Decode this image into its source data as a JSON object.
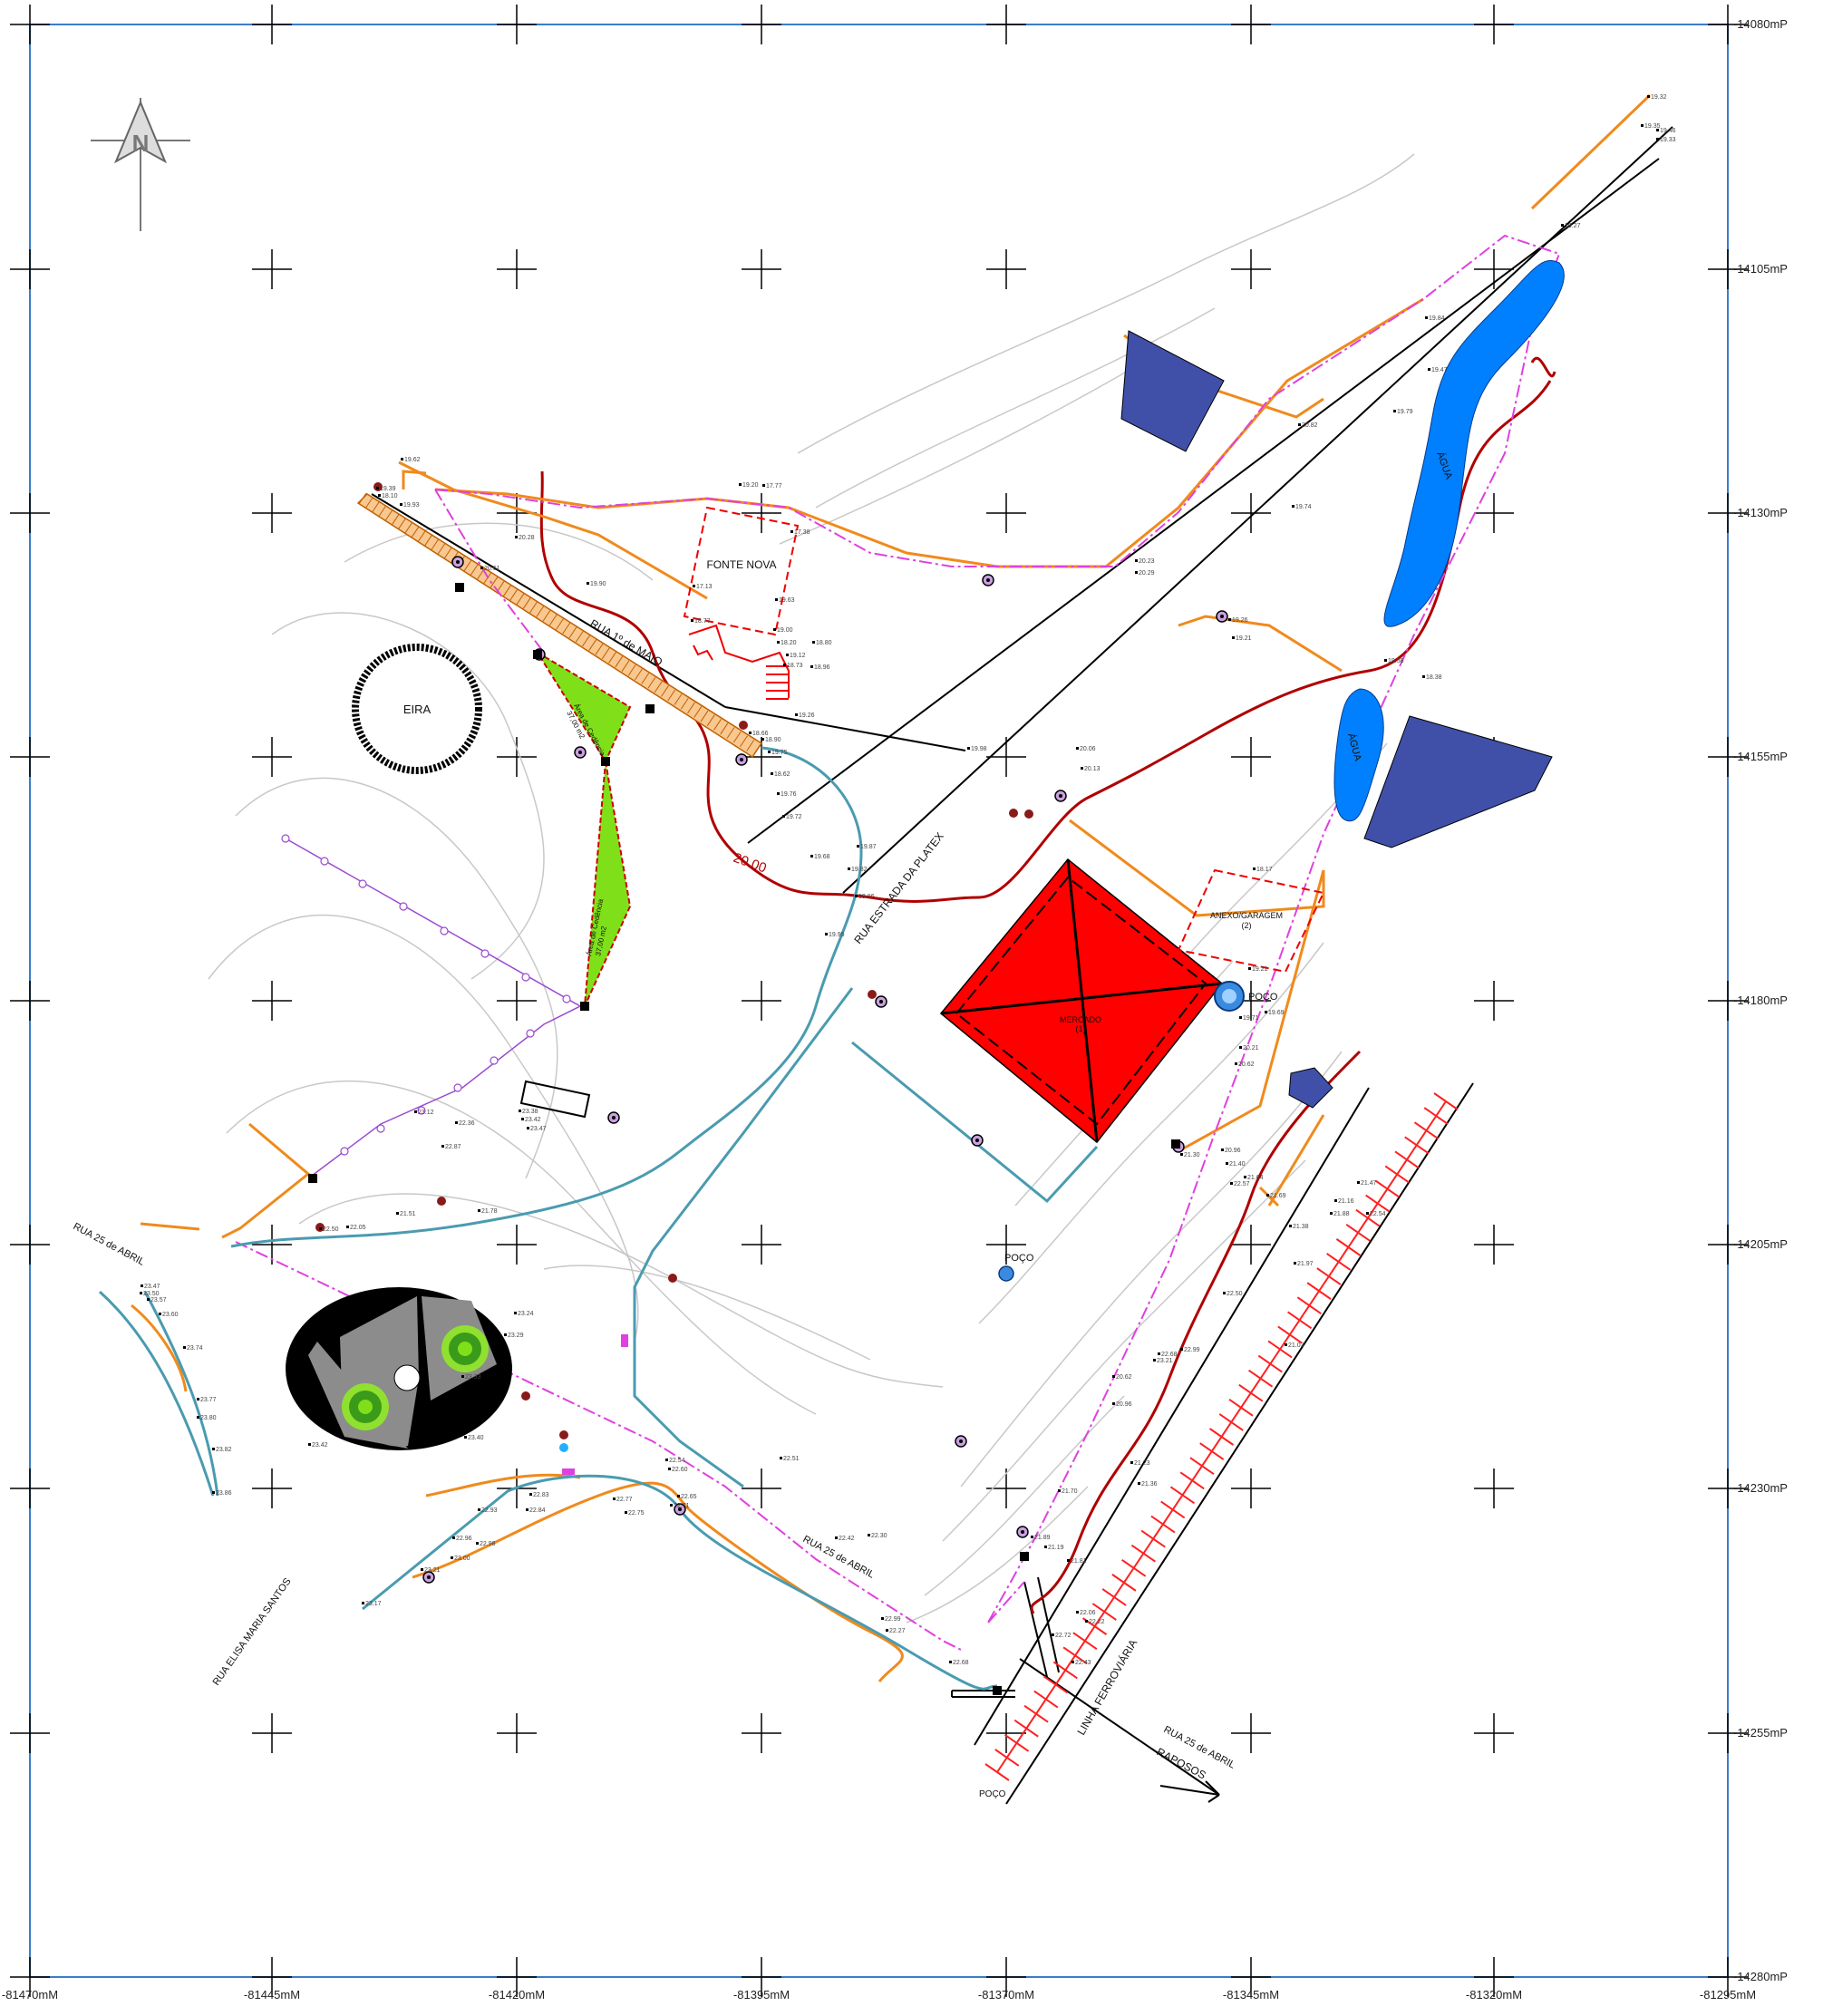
{
  "colors": {
    "frame": "#3a7dc9",
    "road": "#000000",
    "contour": "#c8c8c8",
    "orange_path": "#f08a1c",
    "dark_red": "#b00000",
    "blue_water": "#0080ff",
    "navy": "#4050a8",
    "red_fill": "#ff0000",
    "teal": "#4a9bb0",
    "magenta": "#e040e0",
    "purple": "#9a4ad0",
    "green": "#7fe01a",
    "grey": "#a0a0a0"
  },
  "grid": {
    "right_labels": [
      "-14080mP",
      "-14105mP",
      "-14130mP",
      "-14155mP",
      "-14180mP",
      "-14205mP",
      "-14230mP",
      "-14255mP",
      "-14280mP"
    ],
    "bottom_labels": [
      "-81470mM",
      "-81445mM",
      "-81420mM",
      "-81395mM",
      "-81370mM",
      "-81345mM",
      "-81320mM",
      "-81295mM"
    ]
  },
  "north_arrow": {
    "letter": "N"
  },
  "labels": {
    "fonte_nova": "FONTE NOVA",
    "eira": "EIRA",
    "rua_1_maio": "RUA 1º de MAIO",
    "rua_estrada_platex": "RUA ESTRADA DA PLATEX",
    "contour_20": "20.00",
    "agua_top": "ÁGUA",
    "agua_bottom": "ÁGUA",
    "anexo_garagem": "ANEXO/GARAGEM",
    "anexo_num": "(2)",
    "mercado": "MERCADO",
    "mercado_num": "(1)",
    "poco_top": "POÇO",
    "poco_mid": "POÇO",
    "poco_bottom": "POÇO",
    "rua_25_abril_left": "RUA 25 de ABRIL",
    "rua_25_abril_mid": "RUA 25 de ABRIL",
    "rua_25_abril_right": "RUA 25 de ABRIL",
    "raposos": "RAPOSOS",
    "linha_ferroviaria": "LINHA FERROVIÁRIA",
    "rua_elisa": "RUA ELISA MARIA SANTOS",
    "area_cedencia_1": "Área de Cedência",
    "area_cedencia_1_val": "37,00 m2",
    "area_cedencia_2": "Área de Cedência",
    "area_cedencia_2_val": "37,00 m2"
  },
  "elevations": [
    "19.39",
    "18.10",
    "19.62",
    "19.93",
    "20.61",
    "20.28",
    "19.90",
    "19.20",
    "17.77",
    "17.38",
    "17.13",
    "18.77",
    "19.63",
    "19.00",
    "18.20",
    "19.12",
    "18.73",
    "18.80",
    "18.96",
    "19.26",
    "18.66",
    "18.90",
    "19.75",
    "18.62",
    "19.76",
    "19.72",
    "19.68",
    "19.87",
    "19.82",
    "19.86",
    "19.95",
    "19.98",
    "20.06",
    "20.13",
    "20.23",
    "20.29",
    "20.82",
    "19.74",
    "19.79",
    "19.84",
    "19.47",
    "19.46",
    "19.33",
    "19.35",
    "19.32",
    "19.27",
    "19.26",
    "19.21",
    "19.58",
    "18.38",
    "18.17",
    "19.21",
    "19.69",
    "19.71",
    "20.21",
    "20.62",
    "20.96",
    "21.30",
    "21.40",
    "21.64",
    "21.69",
    "21.38",
    "21.88",
    "22.57",
    "22.50",
    "22.68",
    "23.21",
    "22.99",
    "22.54",
    "21.47",
    "21.16",
    "21.97",
    "21.03",
    "20.62",
    "20.96",
    "21.23",
    "21.36",
    "21.70",
    "21.89",
    "21.19",
    "21.81",
    "22.06",
    "22.22",
    "22.43",
    "22.72",
    "22.68",
    "22.99",
    "22.27",
    "22.30",
    "22.42",
    "22.51",
    "22.54",
    "22.60",
    "22.65",
    "22.71",
    "22.75",
    "22.77",
    "22.83",
    "22.84",
    "22.93",
    "22.96",
    "22.98",
    "23.00",
    "23.17",
    "23.21",
    "23.24",
    "23.29",
    "23.33",
    "23.40",
    "23.42",
    "23.47",
    "23.50",
    "23.57",
    "23.60",
    "23.74",
    "23.77",
    "23.80",
    "23.82",
    "23.86",
    "21.51",
    "21.78",
    "22.05",
    "22.50",
    "22.36",
    "22.87",
    "23.12",
    "23.38",
    "23.42",
    "23.47"
  ]
}
